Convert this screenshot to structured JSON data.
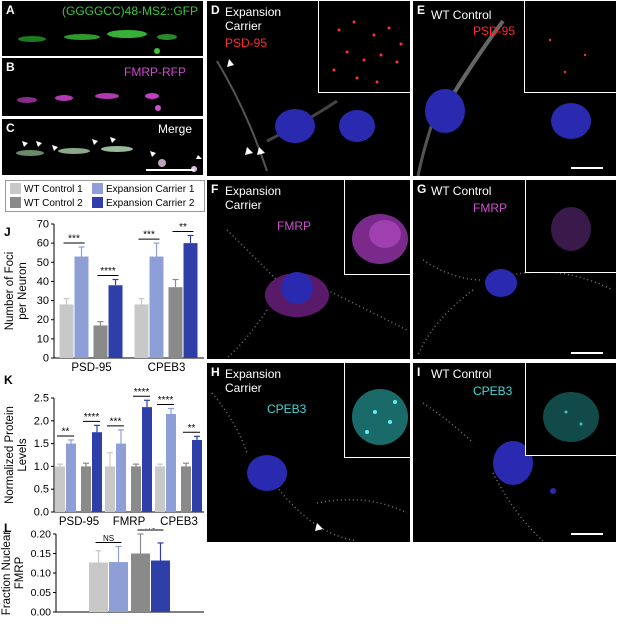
{
  "panels": {
    "a": {
      "label": "A",
      "caption": "(GGGGCC)48-MS2::GFP",
      "caption_color": "#3ec43e"
    },
    "b": {
      "label": "B",
      "caption": "FMRP-RFP",
      "caption_color": "#d04ad0"
    },
    "c": {
      "label": "C",
      "caption": "Merge"
    },
    "d": {
      "label": "D",
      "title1": "Expansion",
      "title2": "Carrier",
      "marker": "PSD-95",
      "marker_color": "#ff2a2a"
    },
    "e": {
      "label": "E",
      "title1": "WT Control",
      "marker": "PSD-95",
      "marker_color": "#ff2a2a"
    },
    "f": {
      "label": "F",
      "title1": "Expansion",
      "title2": "Carrier",
      "marker": "FMRP",
      "marker_color": "#d050d0"
    },
    "g": {
      "label": "G",
      "title1": "WT Control",
      "marker": "FMRP",
      "marker_color": "#d050d0"
    },
    "h": {
      "label": "H",
      "title1": "Expansion",
      "title2": "Carrier",
      "marker": "CPEB3",
      "marker_color": "#40d8d8"
    },
    "i": {
      "label": "I",
      "title1": "WT Control",
      "marker": "CPEB3",
      "marker_color": "#40d8d8"
    }
  },
  "legend": {
    "items": [
      {
        "label": "WT Control 1",
        "color": "#c8c8c8"
      },
      {
        "label": "Expansion Carrier 1",
        "color": "#8e9fd8"
      },
      {
        "label": "WT Control 2",
        "color": "#8a8a8a"
      },
      {
        "label": "Expansion Carrier 2",
        "color": "#2f3fa8"
      }
    ]
  },
  "chart_data": [
    {
      "panel": "J",
      "type": "bar",
      "ylabel": "Number of Foci per Neuron",
      "ylim": [
        0,
        70
      ],
      "yticks": [
        0,
        10,
        20,
        30,
        40,
        50,
        60,
        70
      ],
      "categories": [
        "PSD-95",
        "CPEB3"
      ],
      "series": [
        {
          "name": "WT Control 1",
          "values": [
            28,
            28
          ],
          "errors": [
            3,
            3
          ]
        },
        {
          "name": "Expansion Carrier 1",
          "values": [
            53,
            53
          ],
          "errors": [
            5,
            7
          ]
        },
        {
          "name": "WT Control 2",
          "values": [
            17,
            37
          ],
          "errors": [
            2,
            4
          ]
        },
        {
          "name": "Expansion Carrier 2",
          "values": [
            38,
            60
          ],
          "errors": [
            3,
            4
          ]
        }
      ],
      "significance": [
        {
          "category": 0,
          "pair": [
            0,
            1
          ],
          "text": "***"
        },
        {
          "category": 0,
          "pair": [
            2,
            3
          ],
          "text": "****"
        },
        {
          "category": 1,
          "pair": [
            0,
            1
          ],
          "text": "***"
        },
        {
          "category": 1,
          "pair": [
            2,
            3
          ],
          "text": "**"
        }
      ]
    },
    {
      "panel": "K",
      "type": "bar",
      "ylabel": "Normalized Protein Levels",
      "ylim": [
        0,
        2.5
      ],
      "yticks": [
        0,
        0.5,
        1.0,
        1.5,
        2.0,
        2.5
      ],
      "categories": [
        "PSD-95",
        "FMRP",
        "CPEB3"
      ],
      "series": [
        {
          "name": "WT Control 1",
          "values": [
            1.0,
            1.0,
            1.0
          ],
          "errors": [
            0.05,
            0.3,
            0.05
          ]
        },
        {
          "name": "Expansion Carrier 1",
          "values": [
            1.5,
            1.5,
            2.15
          ],
          "errors": [
            0.08,
            0.3,
            0.12
          ]
        },
        {
          "name": "WT Control 2",
          "values": [
            1.0,
            1.0,
            1.0
          ],
          "errors": [
            0.07,
            0.05,
            0.07
          ]
        },
        {
          "name": "Expansion Carrier 2",
          "values": [
            1.75,
            2.3,
            1.58
          ],
          "errors": [
            0.15,
            0.15,
            0.08
          ]
        }
      ],
      "significance": [
        {
          "category": 0,
          "pair": [
            0,
            1
          ],
          "text": "**"
        },
        {
          "category": 0,
          "pair": [
            2,
            3
          ],
          "text": "****"
        },
        {
          "category": 1,
          "pair": [
            0,
            1
          ],
          "text": "***"
        },
        {
          "category": 1,
          "pair": [
            2,
            3
          ],
          "text": "****"
        },
        {
          "category": 2,
          "pair": [
            0,
            1
          ],
          "text": "****"
        },
        {
          "category": 2,
          "pair": [
            2,
            3
          ],
          "text": "**"
        }
      ]
    },
    {
      "panel": "L",
      "type": "bar",
      "ylabel": "Fraction Nuclear FMRP",
      "ylim": [
        0,
        0.2
      ],
      "yticks": [
        0,
        0.05,
        0.1,
        0.15,
        0.2
      ],
      "tick_labels": [
        "0.00",
        "0.05",
        "0.10",
        "0.15",
        "0.20"
      ],
      "categories": [
        ""
      ],
      "series": [
        {
          "name": "WT Control 1",
          "values": [
            0.127
          ],
          "errors": [
            0.03
          ]
        },
        {
          "name": "Expansion Carrier 1",
          "values": [
            0.128
          ],
          "errors": [
            0.04
          ]
        },
        {
          "name": "WT Control 2",
          "values": [
            0.15
          ],
          "errors": [
            0.05
          ]
        },
        {
          "name": "Expansion Carrier 2",
          "values": [
            0.132
          ],
          "errors": [
            0.045
          ]
        }
      ],
      "significance": [
        {
          "category": 0,
          "pair": [
            0,
            1
          ],
          "text": "NS"
        },
        {
          "category": 0,
          "pair": [
            2,
            3
          ],
          "text": "NS"
        }
      ]
    }
  ]
}
